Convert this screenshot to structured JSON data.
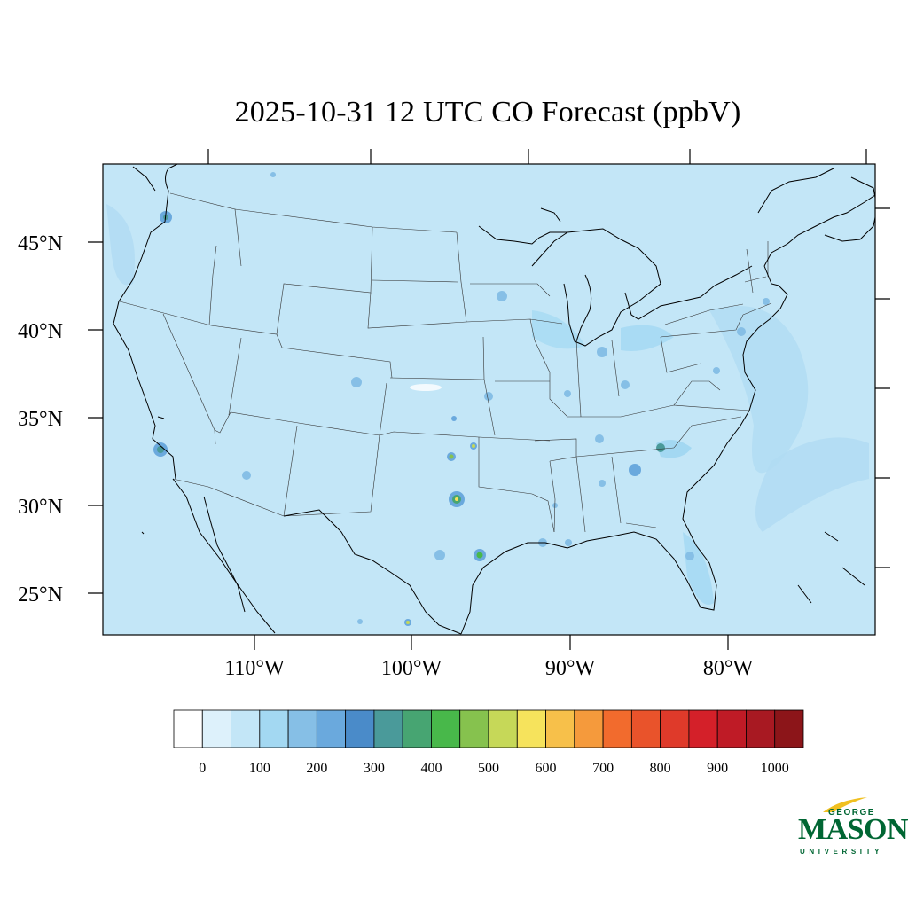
{
  "title": "2025-10-31 12 UTC CO Forecast (ppbV)",
  "map": {
    "background_color": "#c3e6f7",
    "lat_labels": [
      "45°N",
      "40°N",
      "35°N",
      "30°N",
      "25°N"
    ],
    "lon_labels": [
      "110°W",
      "100°W",
      "90°W",
      "80°W"
    ]
  },
  "colorbar": {
    "colors": [
      "#ffffff",
      "#ddf1fb",
      "#c3e6f7",
      "#a3d8f2",
      "#86bfe6",
      "#6aa9dd",
      "#4a8bc9",
      "#4a9a9a",
      "#47a572",
      "#48b84a",
      "#86c24e",
      "#c6d858",
      "#f6e35c",
      "#f7c04a",
      "#f59a3c",
      "#f26b2d",
      "#e9532b",
      "#df3a2a",
      "#d42029",
      "#bf1b26",
      "#a81922",
      "#8c1519"
    ],
    "labels": [
      "0",
      "100",
      "200",
      "300",
      "400",
      "500",
      "600",
      "700",
      "800",
      "900",
      "1000"
    ]
  },
  "logo": {
    "line1": "GEORGE",
    "line2": "MASON",
    "line3": "UNIVERSITY",
    "color": "#006633",
    "accent": "#f0c020"
  }
}
